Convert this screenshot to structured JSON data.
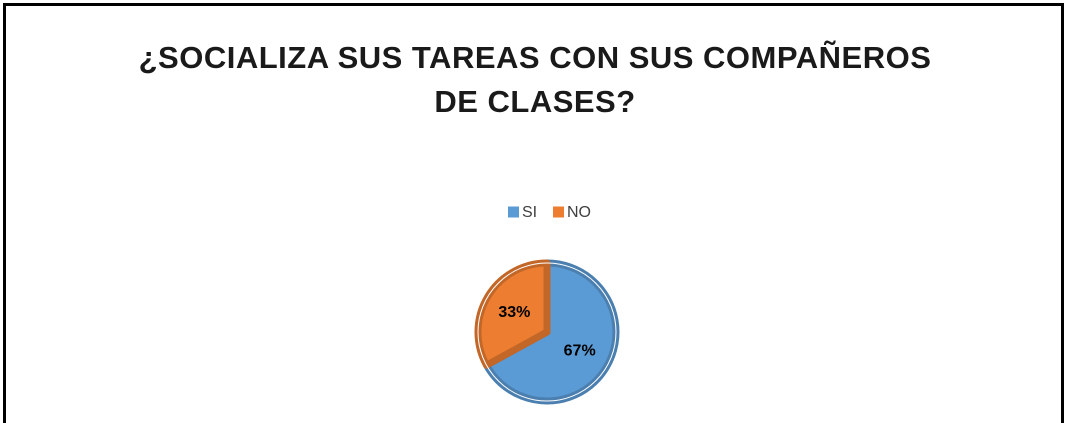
{
  "chart_data": {
    "type": "pie",
    "title": "¿SOCIALIZA SUS TAREAS CON SUS COMPAÑEROS DE CLASES?",
    "categories": [
      "SI",
      "NO"
    ],
    "values": [
      67,
      33
    ],
    "value_labels": [
      "67%",
      "33%"
    ],
    "colors": [
      "#5b9bd5",
      "#ed7d31"
    ],
    "legend": "top"
  }
}
